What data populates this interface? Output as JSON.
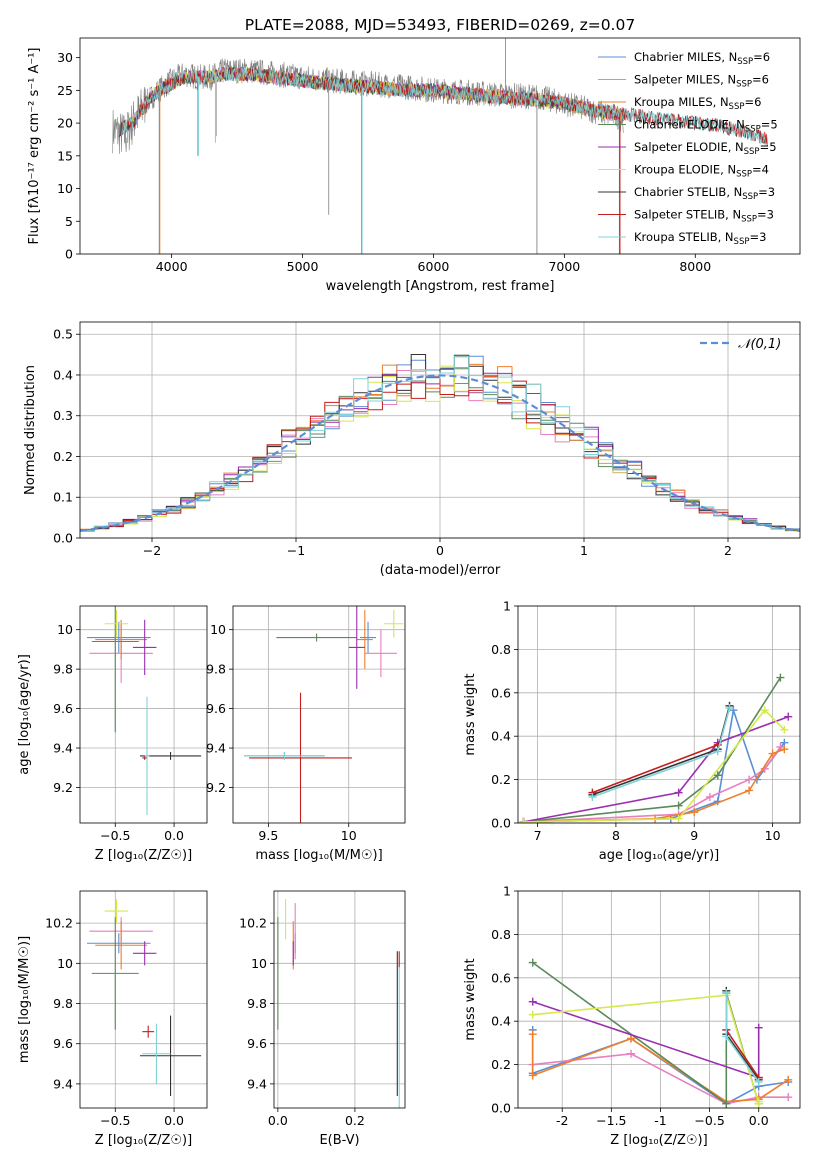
{
  "figure": {
    "title": "PLATE=2088, MJD=53493, FIBERID=0269, z=0.07"
  },
  "colors": {
    "Chabrier MILES": "#5a8fd6",
    "Salpeter MILES": "#e87fbf",
    "Kroupa MILES": "#ef7f2a",
    "Chabrier ELODIE": "#5a8a5a",
    "Salpeter ELODIE": "#9a2fb0",
    "Kroupa ELODIE": "#d6e84c",
    "Chabrier STELIB": "#333333",
    "Salpeter STELIB": "#c41e1e",
    "Kroupa STELIB": "#7fd3d8",
    "data": "#808080"
  },
  "chart_data": [
    {
      "id": "spectrum",
      "type": "line",
      "xlabel": "wavelength [Angstrom, rest frame]",
      "ylabel": "Flux [fλ10⁻¹⁷ erg cm⁻² s⁻¹ A⁻¹]",
      "xlim": [
        3300,
        8800
      ],
      "ylim": [
        0,
        33
      ],
      "xticks": [
        4000,
        5000,
        6000,
        7000,
        8000
      ],
      "yticks": [
        0,
        5,
        10,
        15,
        20,
        25,
        30
      ],
      "grid": false,
      "legend_position": "top-right",
      "legend": [
        "Chabrier MILES, N_SSP=6",
        "Salpeter MILES, N_SSP=6",
        "Kroupa MILES, N_SSP=6",
        "Chabrier ELODIE, N_SSP=5",
        "Salpeter ELODIE, N_SSP=5",
        "Kroupa ELODIE, N_SSP=4",
        "Chabrier STELIB, N_SSP=3",
        "Salpeter STELIB, N_SSP=3",
        "Kroupa STELIB, N_SSP=3"
      ],
      "legend_series": [
        "Chabrier MILES",
        "Salpeter MILES",
        "Kroupa MILES",
        "Chabrier ELODIE",
        "Salpeter ELODIE",
        "Kroupa ELODIE",
        "Chabrier STELIB",
        "Salpeter STELIB",
        "Kroupa STELIB"
      ],
      "continuum_x": [
        3550,
        3650,
        3700,
        3800,
        3900,
        4000,
        4100,
        4200,
        4300,
        4400,
        4600,
        4800,
        5000,
        5200,
        5500,
        5800,
        6000,
        6200,
        6500,
        6800,
        7000,
        7200,
        7400,
        7450
      ],
      "continuum_y": [
        19,
        18,
        20,
        23,
        25,
        26.5,
        27.5,
        27,
        27,
        28,
        28,
        27.5,
        27,
        26.5,
        26,
        25.5,
        25,
        24.8,
        24.3,
        24,
        23,
        22,
        21,
        20.5
      ],
      "model_x": [
        3600,
        3700,
        3800,
        3900,
        4000,
        4100,
        4200,
        4300,
        4400,
        4600,
        4800,
        5000,
        5200,
        5500,
        5800,
        6000,
        6200,
        6500,
        6800,
        7000,
        7200,
        7400,
        7600,
        7800,
        8000,
        8200,
        8400,
        8550
      ],
      "model_y": [
        19,
        20,
        23,
        25,
        26,
        27,
        27,
        27,
        27.5,
        27.5,
        27,
        26.5,
        26,
        25.5,
        25,
        25,
        24.5,
        24,
        23.5,
        23,
        22,
        21.5,
        21,
        20.5,
        20,
        19.5,
        18.5,
        17.5
      ],
      "data_spikes": [
        {
          "x": 3905,
          "low": 0
        },
        {
          "x": 4200,
          "low": 15
        },
        {
          "x": 4340,
          "low": 18
        },
        {
          "x": 5200,
          "low": 6
        },
        {
          "x": 5450,
          "low": 0
        },
        {
          "x": 6550,
          "high": 33
        },
        {
          "x": 6790,
          "low": 0
        },
        {
          "x": 7420,
          "low": 0
        }
      ]
    },
    {
      "id": "residuals",
      "type": "bar",
      "xlabel": "(data-model)/error",
      "ylabel": "Normed distribution",
      "xlim": [
        -2.5,
        2.5
      ],
      "ylim": [
        0,
        0.53
      ],
      "xticks": [
        -2,
        -1,
        0,
        1,
        2
      ],
      "yticks": [
        0.0,
        0.1,
        0.2,
        0.3,
        0.4,
        0.5
      ],
      "grid": true,
      "legend_position": "top-right",
      "legend": [
        "𝒩(0,1)"
      ],
      "bin_width": 0.1,
      "reference_curve": {
        "name": "𝒩(0,1)",
        "style": "dashed",
        "mean": 0,
        "sigma": 1
      },
      "series_offsets": [
        0.012,
        -0.015,
        0.02,
        -0.01,
        0.025,
        -0.02,
        0.008,
        -0.005,
        0.015
      ]
    },
    {
      "id": "z-age",
      "type": "scatter",
      "xlabel": "Z [log₁₀(Z/Z☉)]",
      "ylabel": "age  [log₁₀(age/yr)]",
      "xlim": [
        -0.8,
        0.28
      ],
      "ylim": [
        9.02,
        10.12
      ],
      "xticks": [
        -0.5,
        0.0
      ],
      "yticks": [
        9.2,
        9.4,
        9.6,
        9.8,
        10.0
      ],
      "grid": true,
      "points": [
        {
          "series": "Chabrier MILES",
          "x": -0.47,
          "y": 9.96,
          "xerr": 0.27,
          "yerr": 0.08
        },
        {
          "series": "Salpeter MILES",
          "x": -0.45,
          "y": 9.88,
          "xerr": 0.27,
          "yerr": 0.15
        },
        {
          "series": "Kroupa MILES",
          "x": -0.45,
          "y": 9.95,
          "xerr": 0.22,
          "yerr": 0.1
        },
        {
          "series": "Chabrier ELODIE",
          "x": -0.5,
          "y": 9.94,
          "xerr": 0.2,
          "yerr": 0.46
        },
        {
          "series": "Salpeter ELODIE",
          "x": -0.25,
          "y": 9.91,
          "xerr": 0.1,
          "yerr": 0.14
        },
        {
          "series": "Kroupa ELODIE",
          "x": -0.49,
          "y": 10.03,
          "xerr": 0.1,
          "yerr": 0.07
        },
        {
          "series": "Chabrier STELIB",
          "x": -0.03,
          "y": 9.36,
          "xerr": 0.26,
          "yerr": 0.02
        },
        {
          "series": "Salpeter STELIB",
          "x": -0.25,
          "y": 9.35,
          "xerr": 0.02,
          "yerr": 0.01
        },
        {
          "series": "Kroupa STELIB",
          "x": -0.23,
          "y": 9.36,
          "xerr": 0.02,
          "yerr": 0.3
        }
      ]
    },
    {
      "id": "mass-age",
      "type": "scatter",
      "xlabel": "mass [log₁₀(M/M☉)]",
      "ylabel": "",
      "xlim": [
        9.28,
        10.35
      ],
      "ylim": [
        9.02,
        10.12
      ],
      "xticks": [
        9.5,
        10.0
      ],
      "yticks": [
        9.2,
        9.4,
        9.6,
        9.8,
        10.0
      ],
      "grid": true,
      "points": [
        {
          "series": "Chabrier MILES",
          "x": 10.12,
          "y": 9.96,
          "xerr": 0.05,
          "yerr": 0.08
        },
        {
          "series": "Salpeter MILES",
          "x": 10.2,
          "y": 9.88,
          "xerr": 0.1,
          "yerr": 0.12
        },
        {
          "series": "Kroupa MILES",
          "x": 10.1,
          "y": 9.95,
          "xerr": 0.05,
          "yerr": 0.15
        },
        {
          "series": "Chabrier ELODIE",
          "x": 9.8,
          "y": 9.96,
          "xerr": 0.25,
          "yerr": 0.02
        },
        {
          "series": "Salpeter ELODIE",
          "x": 10.05,
          "y": 9.91,
          "xerr": 0.05,
          "yerr": 0.21
        },
        {
          "series": "Kroupa ELODIE",
          "x": 10.28,
          "y": 10.03,
          "xerr": 0.06,
          "yerr": 0.07
        },
        {
          "series": "Chabrier STELIB",
          "x": 9.6,
          "y": 9.36,
          "xerr": 0.25,
          "yerr": 0.02
        },
        {
          "series": "Salpeter STELIB",
          "x": 9.7,
          "y": 9.35,
          "xerr": 0.32,
          "yerr": 0.33
        },
        {
          "series": "Kroupa STELIB",
          "x": 9.6,
          "y": 9.36,
          "xerr": 0.25,
          "yerr": 0.02
        }
      ]
    },
    {
      "id": "age-weight",
      "type": "line",
      "xlabel": "age  [log₁₀(age/yr)]",
      "ylabel": "mass weight",
      "xlim": [
        6.75,
        10.35
      ],
      "ylim": [
        0,
        1
      ],
      "xticks": [
        7,
        8,
        9,
        10
      ],
      "yticks": [
        0.0,
        0.2,
        0.4,
        0.6,
        0.8,
        1.0
      ],
      "grid": true,
      "series": [
        {
          "name": "Chabrier MILES",
          "x": [
            6.82,
            8.7,
            9.3,
            9.5,
            9.8,
            10.15
          ],
          "y": [
            0.005,
            0.02,
            0.1,
            0.52,
            0.2,
            0.37
          ]
        },
        {
          "name": "Salpeter MILES",
          "x": [
            6.82,
            8.8,
            9.2,
            9.7,
            9.9,
            10.1
          ],
          "y": [
            0.005,
            0.04,
            0.12,
            0.2,
            0.25,
            0.35
          ]
        },
        {
          "name": "Kroupa MILES",
          "x": [
            6.82,
            8.5,
            9.0,
            9.7,
            10.0,
            10.15
          ],
          "y": [
            0.005,
            0.02,
            0.05,
            0.15,
            0.32,
            0.34
          ]
        },
        {
          "name": "Chabrier ELODIE",
          "x": [
            6.82,
            8.8,
            9.3,
            10.1
          ],
          "y": [
            0.005,
            0.08,
            0.22,
            0.67
          ]
        },
        {
          "name": "Salpeter ELODIE",
          "x": [
            6.82,
            8.8,
            9.3,
            10.2
          ],
          "y": [
            0.005,
            0.14,
            0.37,
            0.49
          ]
        },
        {
          "name": "Kroupa ELODIE",
          "x": [
            6.82,
            8.8,
            9.9,
            10.15
          ],
          "y": [
            0.005,
            0.02,
            0.52,
            0.43
          ]
        },
        {
          "name": "Chabrier STELIB",
          "x": [
            7.7,
            9.3,
            9.45
          ],
          "y": [
            0.13,
            0.34,
            0.54
          ]
        },
        {
          "name": "Salpeter STELIB",
          "x": [
            7.7,
            9.3
          ],
          "y": [
            0.14,
            0.36
          ]
        },
        {
          "name": "Kroupa STELIB",
          "x": [
            7.7,
            9.3,
            9.45
          ],
          "y": [
            0.12,
            0.33,
            0.53
          ]
        }
      ]
    },
    {
      "id": "z-mass",
      "type": "scatter",
      "xlabel": "Z [log₁₀(Z/Z☉)]",
      "ylabel": "mass [log₁₀(M/M☉)]",
      "xlim": [
        -0.8,
        0.28
      ],
      "ylim": [
        9.28,
        10.36
      ],
      "xticks": [
        -0.5,
        0.0
      ],
      "yticks": [
        9.4,
        9.6,
        9.8,
        10.0,
        10.2
      ],
      "grid": true,
      "points": [
        {
          "series": "Chabrier MILES",
          "x": -0.47,
          "y": 10.1,
          "xerr": 0.27,
          "yerr": 0.05
        },
        {
          "series": "Salpeter MILES",
          "x": -0.45,
          "y": 10.16,
          "xerr": 0.27,
          "yerr": 0.07
        },
        {
          "series": "Kroupa MILES",
          "x": -0.45,
          "y": 10.09,
          "xerr": 0.22,
          "yerr": 0.12
        },
        {
          "series": "Chabrier ELODIE",
          "x": -0.5,
          "y": 9.95,
          "xerr": 0.2,
          "yerr": 0.28
        },
        {
          "series": "Salpeter ELODIE",
          "x": -0.25,
          "y": 10.05,
          "xerr": 0.1,
          "yerr": 0.06
        },
        {
          "series": "Kroupa ELODIE",
          "x": -0.49,
          "y": 10.26,
          "xerr": 0.1,
          "yerr": 0.06
        },
        {
          "series": "Chabrier STELIB",
          "x": -0.03,
          "y": 9.54,
          "xerr": 0.26,
          "yerr": 0.2
        },
        {
          "series": "Salpeter STELIB",
          "x": -0.22,
          "y": 9.66,
          "xerr": 0.05,
          "yerr": 0.03
        },
        {
          "series": "Kroupa STELIB",
          "x": -0.15,
          "y": 9.55,
          "xerr": 0.12,
          "yerr": 0.15
        }
      ]
    },
    {
      "id": "ebv-mass",
      "type": "scatter",
      "xlabel": "E(B-V)",
      "ylabel": "",
      "xlim": [
        -0.01,
        0.33
      ],
      "ylim": [
        9.28,
        10.36
      ],
      "xticks": [
        0.0,
        0.2
      ],
      "yticks": [
        9.4,
        9.6,
        9.8,
        10.0,
        10.2
      ],
      "grid": true,
      "points": [
        {
          "series": "Chabrier MILES",
          "x": 0.045,
          "y": 10.1,
          "xerr": 0,
          "yerr": 0.05
        },
        {
          "series": "Salpeter MILES",
          "x": 0.045,
          "y": 10.16,
          "xerr": 0,
          "yerr": 0.14
        },
        {
          "series": "Kroupa MILES",
          "x": 0.04,
          "y": 10.09,
          "xerr": 0,
          "yerr": 0.12
        },
        {
          "series": "Chabrier ELODIE",
          "x": 0.0,
          "y": 9.95,
          "xerr": 0,
          "yerr": 0.28
        },
        {
          "series": "Salpeter ELODIE",
          "x": 0.04,
          "y": 10.05,
          "xerr": 0,
          "yerr": 0.06
        },
        {
          "series": "Kroupa ELODIE",
          "x": 0.02,
          "y": 10.22,
          "xerr": 0,
          "yerr": 0.1
        },
        {
          "series": "Chabrier STELIB",
          "x": 0.31,
          "y": 9.7,
          "xerr": 0,
          "yerr": 0.36
        },
        {
          "series": "Salpeter STELIB",
          "x": 0.315,
          "y": 10.02,
          "xerr": 0,
          "yerr": 0.04
        },
        {
          "series": "Kroupa STELIB",
          "x": 0.315,
          "y": 9.6,
          "xerr": 0,
          "yerr": 0.38
        }
      ]
    },
    {
      "id": "z-weight",
      "type": "line",
      "xlabel": "Z [log₁₀(Z/Z☉)]",
      "ylabel": "mass weight",
      "xlim": [
        -2.45,
        0.42
      ],
      "ylim": [
        0,
        1
      ],
      "xticks": [
        -2.0,
        -1.5,
        -1.0,
        -0.5,
        0.0
      ],
      "yticks": [
        0.0,
        0.2,
        0.4,
        0.6,
        0.8,
        1.0
      ],
      "grid": true,
      "series": [
        {
          "name": "Chabrier MILES",
          "x": [
            -2.3,
            -2.3,
            -1.3,
            -0.33,
            0.0,
            0.3
          ],
          "y": [
            0.36,
            0.16,
            0.32,
            0.02,
            0.1,
            0.12
          ]
        },
        {
          "name": "Salpeter MILES",
          "x": [
            -2.3,
            -1.3,
            -0.33,
            0.0,
            0.3
          ],
          "y": [
            0.2,
            0.25,
            0.02,
            0.05,
            0.05
          ]
        },
        {
          "name": "Kroupa MILES",
          "x": [
            -2.3,
            -2.3,
            -1.3,
            -0.33,
            0.0,
            0.3
          ],
          "y": [
            0.34,
            0.15,
            0.32,
            0.03,
            0.04,
            0.13
          ]
        },
        {
          "name": "Chabrier ELODIE",
          "x": [
            -2.3,
            -0.33,
            -0.33,
            0.0
          ],
          "y": [
            0.67,
            0.02,
            0.53,
            0.02
          ]
        },
        {
          "name": "Salpeter ELODIE",
          "x": [
            -2.3,
            0.0,
            0.0
          ],
          "y": [
            0.49,
            0.14,
            0.37
          ]
        },
        {
          "name": "Kroupa ELODIE",
          "x": [
            -2.3,
            -0.33,
            0.0,
            0.0
          ],
          "y": [
            0.43,
            0.52,
            0.02,
            0.03
          ]
        },
        {
          "name": "Chabrier STELIB",
          "x": [
            -0.33,
            -0.33,
            0.0
          ],
          "y": [
            0.54,
            0.34,
            0.13
          ]
        },
        {
          "name": "Salpeter STELIB",
          "x": [
            -0.33,
            0.0
          ],
          "y": [
            0.36,
            0.14
          ]
        },
        {
          "name": "Kroupa STELIB",
          "x": [
            -0.33,
            -0.33,
            0.0
          ],
          "y": [
            0.53,
            0.33,
            0.12
          ]
        }
      ]
    }
  ]
}
